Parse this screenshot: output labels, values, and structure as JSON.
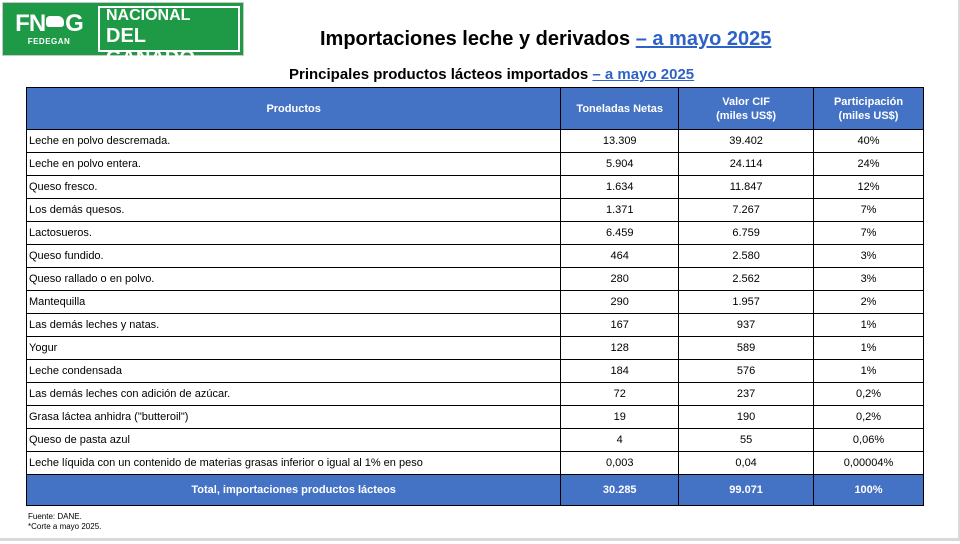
{
  "logo": {
    "mark": "FN",
    "mark_end": "G",
    "sub": "FEDEGAN",
    "line1": "FONDO NACIONAL",
    "line2": "DEL GANADO"
  },
  "header": {
    "title_main": "Importaciones leche y derivados ",
    "title_link": "– a mayo 2025"
  },
  "table_title": {
    "main": "Principales productos lácteos importados ",
    "link": "– a mayo 2025"
  },
  "table": {
    "headers": {
      "product": "Productos",
      "tons": "Toneladas Netas",
      "value_line1": "Valor  CIF",
      "value_line2": "(miles US$)",
      "share_line1": "Participación",
      "share_line2": "(miles US$)"
    },
    "rows": [
      {
        "product": "Leche en polvo descremada.",
        "tons": "13.309",
        "value": "39.402",
        "share": "40%"
      },
      {
        "product": "Leche en polvo entera.",
        "tons": "5.904",
        "value": "24.114",
        "share": "24%"
      },
      {
        "product": "Queso fresco.",
        "tons": "1.634",
        "value": "11.847",
        "share": "12%"
      },
      {
        "product": "Los demás quesos.",
        "tons": "1.371",
        "value": "7.267",
        "share": "7%"
      },
      {
        "product": "Lactosueros.",
        "tons": "6.459",
        "value": "6.759",
        "share": "7%"
      },
      {
        "product": "Queso fundido.",
        "tons": "464",
        "value": "2.580",
        "share": "3%"
      },
      {
        "product": "Queso rallado o en polvo.",
        "tons": "280",
        "value": "2.562",
        "share": "3%"
      },
      {
        "product": "Mantequilla",
        "tons": "290",
        "value": "1.957",
        "share": "2%"
      },
      {
        "product": "Las demás leches y natas.",
        "tons": "167",
        "value": "937",
        "share": "1%"
      },
      {
        "product": "Yogur",
        "tons": "128",
        "value": "589",
        "share": "1%"
      },
      {
        "product": "Leche condensada",
        "tons": "184",
        "value": "576",
        "share": "1%"
      },
      {
        "product": "Las demás leches con adición de azúcar.",
        "tons": "72",
        "value": "237",
        "share": "0,2%"
      },
      {
        "product": "Grasa láctea anhidra (\"butteroil\")",
        "tons": "19",
        "value": "190",
        "share": "0,2%"
      },
      {
        "product": "Queso de pasta azul",
        "tons": "4",
        "value": "55",
        "share": "0,06%"
      },
      {
        "product": "Leche líquida con un contenido de materias grasas inferior o igual al 1% en peso",
        "tons": "0,003",
        "value": "0,04",
        "share": "0,00004%"
      }
    ],
    "total": {
      "label": "Total, importaciones productos lácteos",
      "tons": "30.285",
      "value": "99.071",
      "share": "100%"
    }
  },
  "footnotes": {
    "source": "Fuente: DANE.",
    "cutoff": "*Corte a mayo 2025."
  },
  "colors": {
    "header_blue": "#4472c4",
    "brand_green": "#1e9a47",
    "link_blue": "#2f62c7"
  }
}
